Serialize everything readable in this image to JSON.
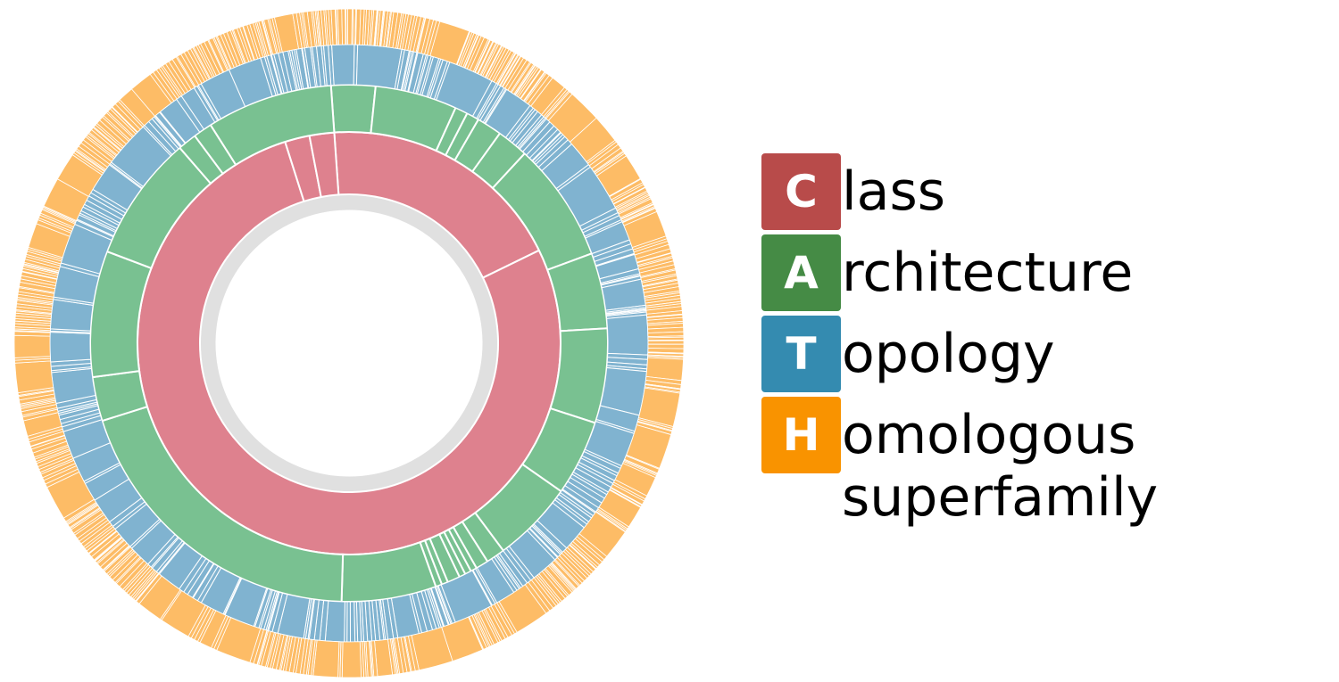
{
  "colors": {
    "class": "#de818e",
    "architecture": "#79c191",
    "topology": "#80b3d0",
    "homologous": "#fdbc66",
    "center_ring": "#e0e0e0",
    "badge_class": "#b84b4a",
    "badge_architecture": "#458b45",
    "badge_topology": "#348bb0",
    "badge_homologous": "#f99300"
  },
  "legend": [
    {
      "letter": "C",
      "text": "lass",
      "text_line2": ""
    },
    {
      "letter": "A",
      "text": "rchitecture",
      "text_line2": ""
    },
    {
      "letter": "T",
      "text": "opology",
      "text_line2": ""
    },
    {
      "letter": "H",
      "text": "omologous",
      "text_line2": "superfamily"
    }
  ],
  "rings": {
    "class": [
      30,
      123,
      3,
      3
    ],
    "architecture": [
      7,
      13,
      2,
      2,
      4,
      5,
      19,
      12,
      15,
      12,
      13,
      3,
      2,
      1,
      1,
      1,
      2,
      1,
      1,
      15,
      50,
      7,
      20,
      20,
      3,
      3,
      20
    ]
  }
}
